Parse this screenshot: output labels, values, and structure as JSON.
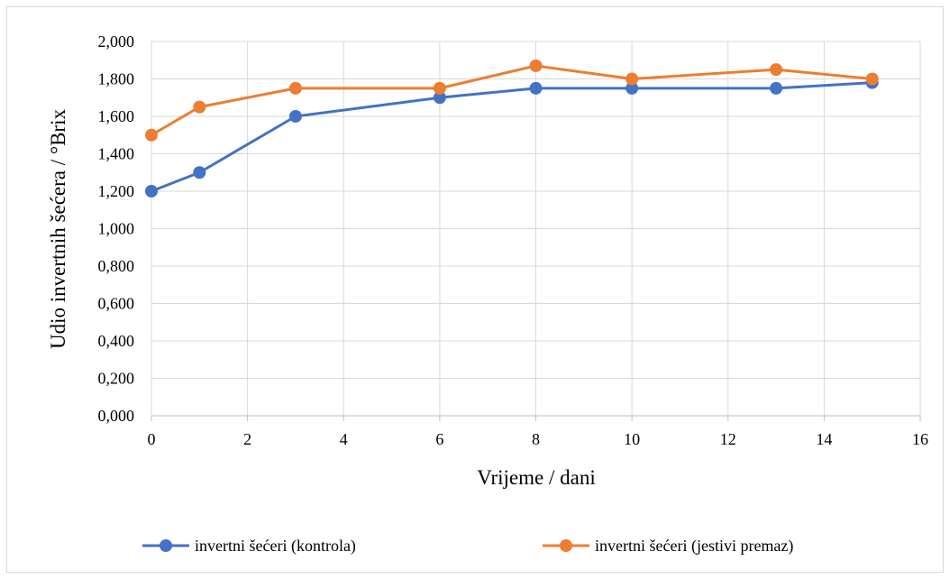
{
  "chart_data": {
    "type": "line",
    "xlabel": "Vrijeme / dani",
    "ylabel": "Udio invertnih šećera / °Brix",
    "xlim": [
      0,
      16
    ],
    "ylim": [
      0,
      2
    ],
    "x_ticks": [
      0,
      2,
      4,
      6,
      8,
      10,
      12,
      14,
      16
    ],
    "x_tick_labels": [
      "0",
      "2",
      "4",
      "6",
      "8",
      "10",
      "12",
      "14",
      "16"
    ],
    "y_ticks": [
      0,
      0.2,
      0.4,
      0.6,
      0.8,
      1.0,
      1.2,
      1.4,
      1.6,
      1.8,
      2.0
    ],
    "y_tick_labels": [
      "0,000",
      "0,200",
      "0,400",
      "0,600",
      "0,800",
      "1,000",
      "1,200",
      "1,400",
      "1,600",
      "1,800",
      "2,000"
    ],
    "grid": "vertical and horizontal",
    "legend_position": "bottom",
    "x": [
      0,
      1,
      3,
      6,
      8,
      10,
      13,
      15
    ],
    "series": [
      {
        "name": "invertni šećeri (kontrola)",
        "color": "#4472C4",
        "values": [
          1.2,
          1.3,
          1.6,
          1.7,
          1.75,
          1.75,
          1.75,
          1.78
        ]
      },
      {
        "name": "invertni šećeri (jestivi premaz)",
        "color": "#ED7D31",
        "values": [
          1.5,
          1.65,
          1.75,
          1.75,
          1.87,
          1.8,
          1.85,
          1.8
        ]
      }
    ]
  }
}
